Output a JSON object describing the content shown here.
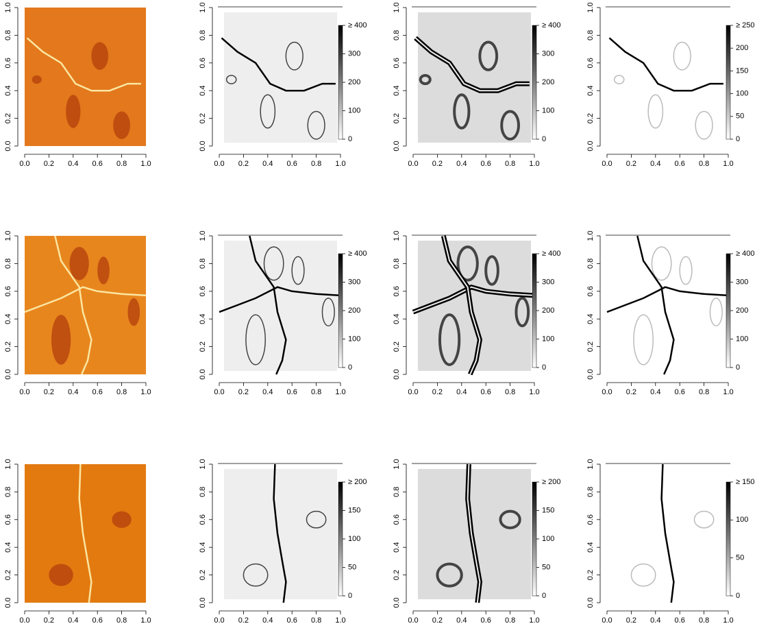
{
  "chart_data": [
    {
      "type": "heatmap",
      "colormap": "heat",
      "xlim": [
        0,
        1
      ],
      "ylim": [
        0,
        1
      ],
      "xticks": [
        {
          "value": 0,
          "label": "0.0"
        },
        0.2,
        0.4,
        0.6,
        0.8,
        {
          "value": 1,
          "label": "1.0"
        }
      ],
      "yticks": [
        {
          "value": 0,
          "label": "0.0"
        },
        0.2,
        0.4,
        0.6,
        0.8,
        {
          "value": 1,
          "label": "1.0"
        }
      ]
    },
    {
      "type": "heatmap",
      "colormap": "gray",
      "xlim": [
        0,
        1
      ],
      "ylim": [
        0,
        1
      ],
      "xticks": [
        {
          "value": 0,
          "label": "0.0"
        },
        0.2,
        0.4,
        0.6,
        0.8,
        {
          "value": 1,
          "label": "1.0"
        }
      ],
      "yticks": [
        {
          "value": 0,
          "label": "0.0"
        },
        0.2,
        0.4,
        0.6,
        0.8,
        {
          "value": 1,
          "label": "1.0"
        }
      ],
      "zlim": [
        0,
        400
      ],
      "zticks": [
        0,
        100,
        200,
        300,
        {
          "value": 400,
          "label": "≥ 400"
        }
      ]
    },
    {
      "type": "heatmap",
      "colormap": "gray",
      "xlim": [
        0,
        1
      ],
      "ylim": [
        0,
        1
      ],
      "xticks": [
        {
          "value": 0,
          "label": "0.0"
        },
        0.2,
        0.4,
        0.6,
        0.8,
        {
          "value": 1,
          "label": "1.0"
        }
      ],
      "yticks": [
        {
          "value": 0,
          "label": "0.0"
        },
        0.2,
        0.4,
        0.6,
        0.8,
        {
          "value": 1,
          "label": "1.0"
        }
      ],
      "zlim": [
        0,
        400
      ],
      "zticks": [
        0,
        100,
        200,
        300,
        {
          "value": 400,
          "label": "≥ 400"
        }
      ]
    },
    {
      "type": "heatmap",
      "colormap": "gray",
      "xlim": [
        0,
        1
      ],
      "ylim": [
        0,
        1
      ],
      "xticks": [
        {
          "value": 0,
          "label": "0.0"
        },
        0.2,
        0.4,
        0.6,
        0.8,
        {
          "value": 1,
          "label": "1.0"
        }
      ],
      "yticks": [
        {
          "value": 0,
          "label": "0.0"
        },
        0.2,
        0.4,
        0.6,
        0.8,
        {
          "value": 1,
          "label": "1.0"
        }
      ],
      "zlim": [
        0,
        250
      ],
      "zticks": [
        0,
        50,
        100,
        150,
        200,
        {
          "value": 250,
          "label": "≥ 250"
        }
      ]
    },
    {
      "type": "heatmap",
      "colormap": "heat",
      "xlim": [
        0,
        1
      ],
      "ylim": [
        0,
        1
      ],
      "xticks": [
        {
          "value": 0,
          "label": "0.0"
        },
        0.2,
        0.4,
        0.6,
        0.8,
        {
          "value": 1,
          "label": "1.0"
        }
      ],
      "yticks": [
        {
          "value": 0,
          "label": "0.0"
        },
        0.2,
        0.4,
        0.6,
        0.8,
        {
          "value": 1,
          "label": "1.0"
        }
      ]
    },
    {
      "type": "heatmap",
      "colormap": "gray",
      "xlim": [
        0,
        1
      ],
      "ylim": [
        0,
        1
      ],
      "xticks": [
        {
          "value": 0,
          "label": "0.0"
        },
        0.2,
        0.4,
        0.6,
        0.8,
        {
          "value": 1,
          "label": "1.0"
        }
      ],
      "yticks": [
        {
          "value": 0,
          "label": "0.0"
        },
        0.2,
        0.4,
        0.6,
        0.8,
        {
          "value": 1,
          "label": "1.0"
        }
      ],
      "zlim": [
        0,
        400
      ],
      "zticks": [
        0,
        100,
        200,
        300,
        {
          "value": 400,
          "label": "≥ 400"
        }
      ]
    },
    {
      "type": "heatmap",
      "colormap": "gray",
      "xlim": [
        0,
        1
      ],
      "ylim": [
        0,
        1
      ],
      "xticks": [
        {
          "value": 0,
          "label": "0.0"
        },
        0.2,
        0.4,
        0.6,
        0.8,
        {
          "value": 1,
          "label": "1.0"
        }
      ],
      "yticks": [
        {
          "value": 0,
          "label": "0.0"
        },
        0.2,
        0.4,
        0.6,
        0.8,
        {
          "value": 1,
          "label": "1.0"
        }
      ],
      "zlim": [
        0,
        400
      ],
      "zticks": [
        0,
        100,
        200,
        300,
        {
          "value": 400,
          "label": "≥ 400"
        }
      ]
    },
    {
      "type": "heatmap",
      "colormap": "gray",
      "xlim": [
        0,
        1
      ],
      "ylim": [
        0,
        1
      ],
      "xticks": [
        {
          "value": 0,
          "label": "0.0"
        },
        0.2,
        0.4,
        0.6,
        0.8,
        {
          "value": 1,
          "label": "1.0"
        }
      ],
      "yticks": [
        {
          "value": 0,
          "label": "0.0"
        },
        0.2,
        0.4,
        0.6,
        0.8,
        {
          "value": 1,
          "label": "1.0"
        }
      ],
      "zlim": [
        0,
        400
      ],
      "zticks": [
        0,
        100,
        200,
        300,
        {
          "value": 400,
          "label": "≥ 400"
        }
      ]
    },
    {
      "type": "heatmap",
      "colormap": "heat",
      "xlim": [
        0,
        1
      ],
      "ylim": [
        0,
        1
      ],
      "xticks": [
        {
          "value": 0,
          "label": "0.0"
        },
        0.2,
        0.4,
        0.6,
        0.8,
        {
          "value": 1,
          "label": "1.0"
        }
      ],
      "yticks": [
        {
          "value": 0,
          "label": "0.0"
        },
        0.2,
        0.4,
        0.6,
        0.8,
        {
          "value": 1,
          "label": "1.0"
        }
      ]
    },
    {
      "type": "heatmap",
      "colormap": "gray",
      "xlim": [
        0,
        1
      ],
      "ylim": [
        0,
        1
      ],
      "xticks": [
        {
          "value": 0,
          "label": "0.0"
        },
        0.2,
        0.4,
        0.6,
        0.8,
        {
          "value": 1,
          "label": "1.0"
        }
      ],
      "yticks": [
        {
          "value": 0,
          "label": "0.0"
        },
        0.2,
        0.4,
        0.6,
        0.8,
        {
          "value": 1,
          "label": "1.0"
        }
      ],
      "zlim": [
        0,
        200
      ],
      "zticks": [
        0,
        50,
        100,
        150,
        {
          "value": 200,
          "label": "≥ 200"
        }
      ]
    },
    {
      "type": "heatmap",
      "colormap": "gray",
      "xlim": [
        0,
        1
      ],
      "ylim": [
        0,
        1
      ],
      "xticks": [
        {
          "value": 0,
          "label": "0.0"
        },
        0.2,
        0.4,
        0.6,
        0.8,
        {
          "value": 1,
          "label": "1.0"
        }
      ],
      "yticks": [
        {
          "value": 0,
          "label": "0.0"
        },
        0.2,
        0.4,
        0.6,
        0.8,
        {
          "value": 1,
          "label": "1.0"
        }
      ],
      "zlim": [
        0,
        200
      ],
      "zticks": [
        0,
        50,
        100,
        150,
        {
          "value": 200,
          "label": "≥ 200"
        }
      ]
    },
    {
      "type": "heatmap",
      "colormap": "gray",
      "xlim": [
        0,
        1
      ],
      "ylim": [
        0,
        1
      ],
      "xticks": [
        {
          "value": 0,
          "label": "0.0"
        },
        0.2,
        0.4,
        0.6,
        0.8,
        {
          "value": 1,
          "label": "1.0"
        }
      ],
      "yticks": [
        {
          "value": 0,
          "label": "0.0"
        },
        0.2,
        0.4,
        0.6,
        0.8,
        {
          "value": 1,
          "label": "1.0"
        }
      ],
      "zlim": [
        0,
        150
      ],
      "zticks": [
        0,
        50,
        100,
        {
          "value": 150,
          "label": "≥ 150"
        }
      ]
    }
  ]
}
